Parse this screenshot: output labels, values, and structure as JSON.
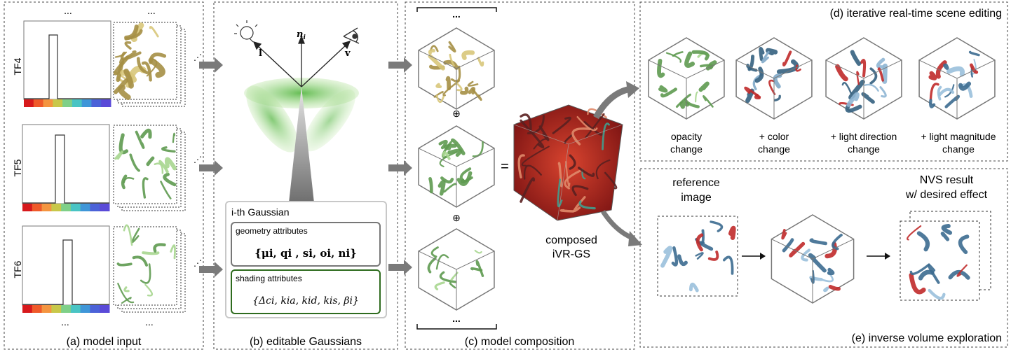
{
  "panels": {
    "a": {
      "caption": "(a) model input",
      "rows": [
        "TF4",
        "TF5",
        "TF6"
      ],
      "ellipsis": "..."
    },
    "b": {
      "caption": "(b) editable Gaussians",
      "vec_l": "l",
      "vec_n": "n",
      "vec_n_sub": "i",
      "vec_v": "v",
      "box_title": "i-th Gaussian",
      "geometry_label": "geometry attributes",
      "geometry_formula": "{μi, qi , si, oi, ni}",
      "shading_label": "shading attributes",
      "shading_formula": "{Δci, kia, kid, kis, βi}"
    },
    "c": {
      "caption": "(c) model composition",
      "plus": "⊕",
      "equals": "=",
      "ellipsis": "...",
      "composed_line1": "composed",
      "composed_line2": "iVR-GS"
    },
    "d": {
      "title": "(d) iterative real-time scene editing",
      "items": [
        {
          "line1": "opacity",
          "line2": "change"
        },
        {
          "line1": "+ color",
          "line2": "change"
        },
        {
          "line1": "+ light direction",
          "line2": "change"
        },
        {
          "line1": "+ light magnitude",
          "line2": "change"
        }
      ]
    },
    "e": {
      "title": "(e) inverse volume exploration",
      "ref_line1": "reference",
      "ref_line2": "image",
      "nvs_line1": "NVS result",
      "nvs_line2": "w/ desired effect"
    }
  },
  "colors": {
    "gold": "#a58f45",
    "green": "#5e9a50",
    "blue": "#34607f",
    "red": "#c02a2a",
    "dark_green_box": "#2e6b1e",
    "arrow_gray": "#7a7a7a"
  },
  "colormap": [
    "#d7191c",
    "#ef5a2a",
    "#f49540",
    "#c8c84a",
    "#7fd088",
    "#49c4c4",
    "#3f96d8",
    "#4b62d8",
    "#5a4ad8"
  ]
}
